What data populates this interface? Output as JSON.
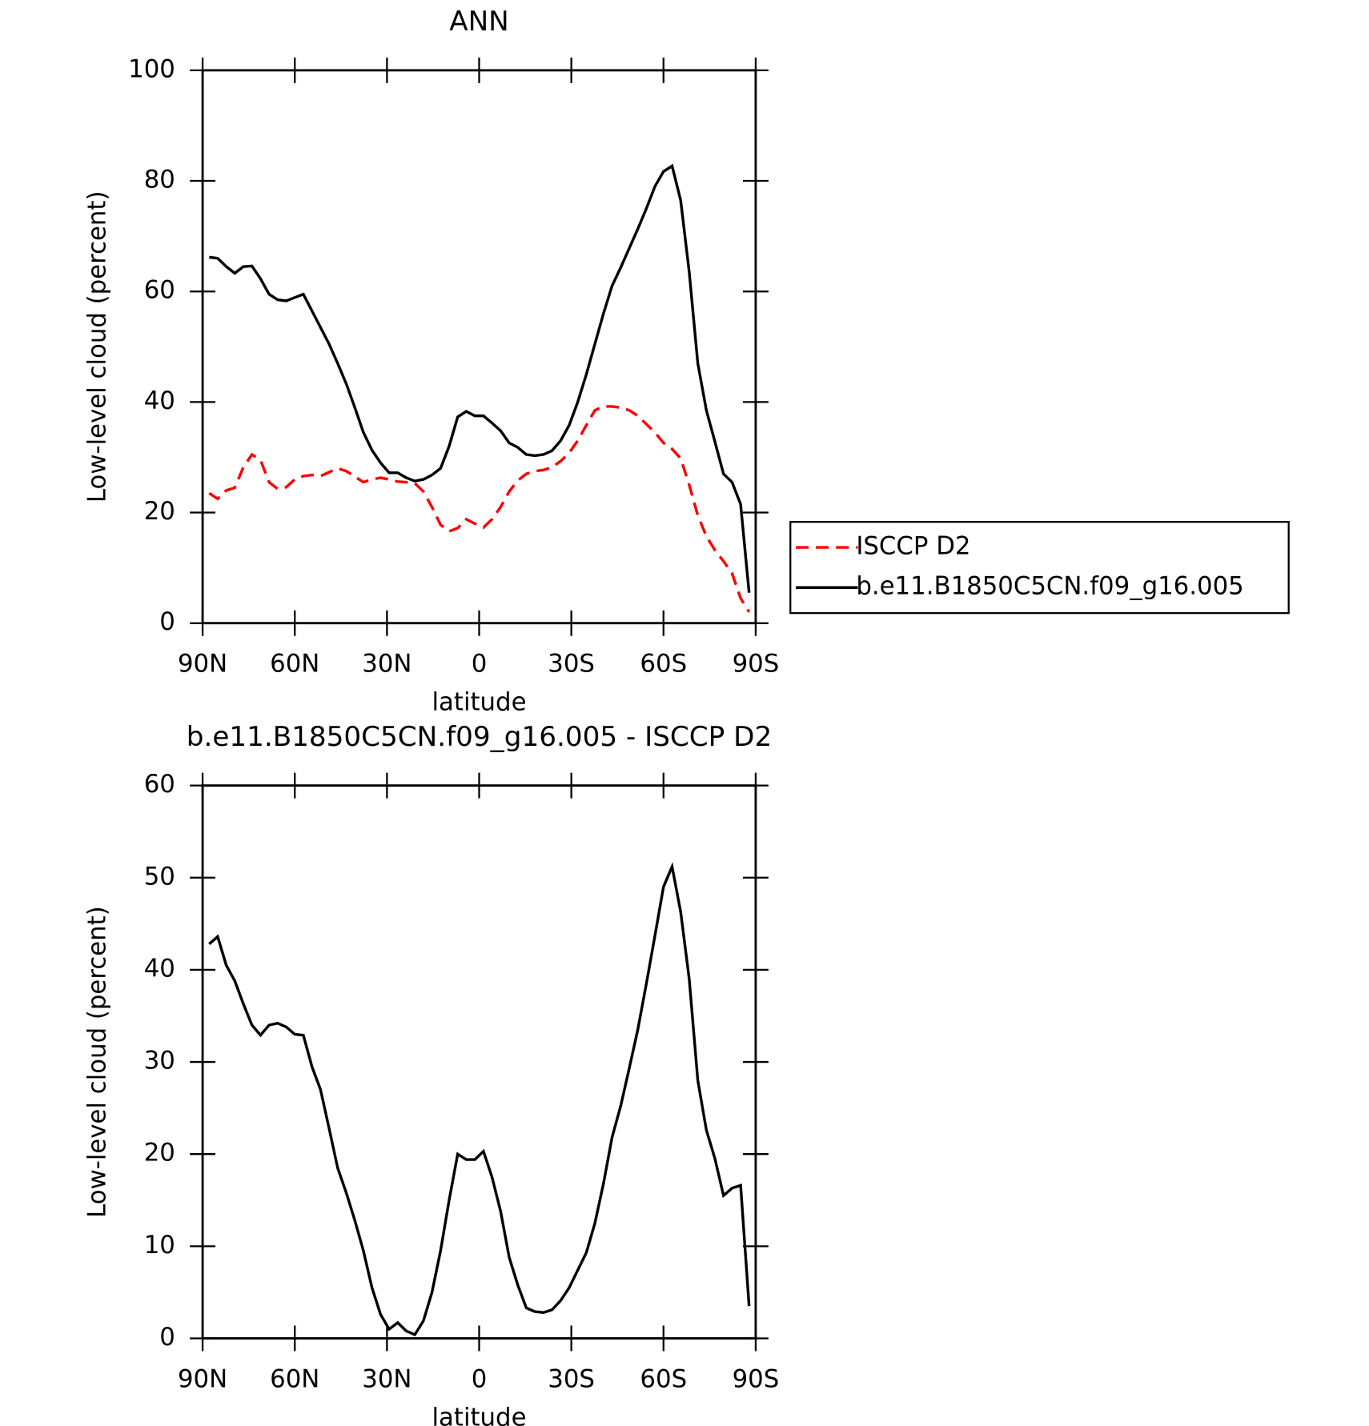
{
  "chart_data": [
    {
      "type": "line",
      "title": "ANN",
      "xlabel": "latitude",
      "ylabel": "Low-level cloud (percent)",
      "xlim": [
        90,
        -90
      ],
      "xticks": [
        {
          "value": 90,
          "label": "90N"
        },
        {
          "value": 60,
          "label": "60N"
        },
        {
          "value": 30,
          "label": "30N"
        },
        0,
        {
          "value": -30,
          "label": "30S"
        },
        {
          "value": -60,
          "label": "60S"
        },
        {
          "value": -90,
          "label": "90S"
        }
      ],
      "ylim": [
        0,
        100
      ],
      "yticks": [
        0,
        20,
        40,
        60,
        80,
        100
      ],
      "legend": "right",
      "x": [
        87.86,
        85.1,
        82.31,
        79.53,
        76.74,
        73.95,
        71.16,
        68.37,
        65.58,
        62.79,
        60.0,
        57.21,
        54.42,
        51.63,
        48.84,
        46.05,
        43.25,
        40.46,
        37.67,
        34.88,
        32.09,
        29.3,
        26.51,
        23.72,
        20.93,
        18.14,
        15.35,
        12.56,
        9.77,
        6.98,
        4.19,
        1.4,
        -1.4,
        -4.19,
        -6.98,
        -9.77,
        -12.56,
        -15.35,
        -18.14,
        -20.93,
        -23.72,
        -26.51,
        -29.3,
        -32.09,
        -34.88,
        -37.67,
        -40.46,
        -43.25,
        -46.05,
        -48.84,
        -51.63,
        -54.42,
        -57.21,
        -60.0,
        -62.79,
        -65.58,
        -68.37,
        -71.16,
        -73.95,
        -76.74,
        -79.53,
        -82.31,
        -85.1,
        -87.86
      ],
      "series": [
        {
          "name": "ISCCP D2",
          "color": "#ff0000",
          "dash": true,
          "values": [
            23.5,
            22.5,
            24,
            24.5,
            28.2,
            30.5,
            29.5,
            25.5,
            24.3,
            24.6,
            26,
            26.6,
            26.8,
            26.6,
            27.3,
            28,
            27.5,
            26.5,
            25.5,
            26,
            26.3,
            26,
            25.6,
            25.5,
            25.3,
            23.8,
            21,
            17.8,
            16.6,
            17.2,
            18.8,
            18,
            17.3,
            18.8,
            21,
            23.8,
            25.8,
            27,
            27.5,
            27.7,
            28.2,
            29.3,
            30.8,
            33,
            35.8,
            38.5,
            39.2,
            39.2,
            39,
            38.5,
            37.5,
            36,
            34.5,
            32.6,
            31.5,
            29.8,
            25,
            19.5,
            15.7,
            13.2,
            11.2,
            9,
            4.5,
            2
          ]
        },
        {
          "name": "b.e11.B1850C5CN.f09_g16.005",
          "color": "#000000",
          "dash": false,
          "values": [
            66.2,
            66,
            64.5,
            63.3,
            64.5,
            64.6,
            62.3,
            59.5,
            58.5,
            58.3,
            58.9,
            59.5,
            56.5,
            53.5,
            50.5,
            47,
            43.3,
            39,
            34.5,
            31.3,
            29,
            27.2,
            27.2,
            26.3,
            25.7,
            26,
            26.8,
            28,
            32,
            37.3,
            38.3,
            37.5,
            37.5,
            36.2,
            34.8,
            32.6,
            31.8,
            30.5,
            30.3,
            30.5,
            31.2,
            33,
            35.8,
            40,
            45,
            50.5,
            56,
            61,
            64.3,
            67.8,
            71.3,
            75,
            79,
            81.7,
            82.7,
            76.5,
            63.5,
            47,
            38.5,
            32.8,
            27,
            25.5,
            21.5,
            5.5
          ]
        }
      ]
    },
    {
      "type": "line",
      "title": "b.e11.B1850C5CN.f09_g16.005 - ISCCP D2",
      "xlabel": "latitude",
      "ylabel": "Low-level cloud (percent)",
      "xlim": [
        90,
        -90
      ],
      "xticks": [
        {
          "value": 90,
          "label": "90N"
        },
        {
          "value": 60,
          "label": "60N"
        },
        {
          "value": 30,
          "label": "30N"
        },
        0,
        {
          "value": -30,
          "label": "30S"
        },
        {
          "value": -60,
          "label": "60S"
        },
        {
          "value": -90,
          "label": "90S"
        }
      ],
      "ylim": [
        0,
        60
      ],
      "yticks": [
        0,
        10,
        20,
        30,
        40,
        50,
        60
      ],
      "x": [
        87.86,
        85.1,
        82.31,
        79.53,
        76.74,
        73.95,
        71.16,
        68.37,
        65.58,
        62.79,
        60.0,
        57.21,
        54.42,
        51.63,
        48.84,
        46.05,
        43.25,
        40.46,
        37.67,
        34.88,
        32.09,
        29.3,
        26.51,
        23.72,
        20.93,
        18.14,
        15.35,
        12.56,
        9.77,
        6.98,
        4.19,
        1.4,
        -1.4,
        -4.19,
        -6.98,
        -9.77,
        -12.56,
        -15.35,
        -18.14,
        -20.93,
        -23.72,
        -26.51,
        -29.3,
        -32.09,
        -34.88,
        -37.67,
        -40.46,
        -43.25,
        -46.05,
        -48.84,
        -51.63,
        -54.42,
        -57.21,
        -60.0,
        -62.79,
        -65.58,
        -68.37,
        -71.16,
        -73.95,
        -76.74,
        -79.53,
        -82.31,
        -85.1,
        -87.86
      ],
      "series": [
        {
          "color": "#000000",
          "dash": false,
          "values": [
            42.8,
            43.6,
            40.5,
            38.8,
            36.3,
            34,
            32.9,
            34,
            34.2,
            33.8,
            33,
            32.9,
            29.5,
            27,
            22.8,
            18.5,
            15.8,
            12.8,
            9.5,
            5.5,
            2.6,
            1,
            1.7,
            0.8,
            0.4,
            1.9,
            5,
            9.5,
            15,
            20,
            19.4,
            19.4,
            20.3,
            17.5,
            13.8,
            8.8,
            5.8,
            3.3,
            2.9,
            2.8,
            3.1,
            4.1,
            5.5,
            7.4,
            9.3,
            12.5,
            16.8,
            21.8,
            25.2,
            29.3,
            33.5,
            38.5,
            43.7,
            49,
            51.2,
            46.3,
            39,
            28,
            22.6,
            19.5,
            15.5,
            16.3,
            16.6,
            3.5
          ]
        }
      ]
    }
  ]
}
